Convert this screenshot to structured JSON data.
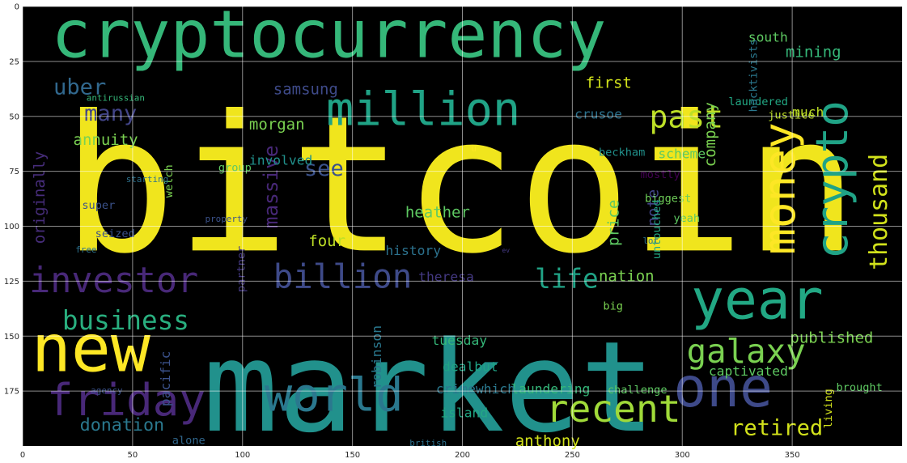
{
  "chart_data": {
    "type": "wordcloud",
    "title": "",
    "xlabel": "",
    "ylabel": "",
    "x_ticks": [
      0,
      50,
      100,
      150,
      200,
      250,
      300,
      350
    ],
    "y_ticks": [
      0,
      25,
      50,
      75,
      100,
      125,
      150,
      175
    ],
    "xlim": [
      0,
      400
    ],
    "ylim": [
      200,
      0
    ],
    "grid": true,
    "background": "#000000",
    "colors": {
      "yellow": "#f0e51d",
      "lime": "#8bd14f",
      "green": "#36b876",
      "teal": "#20928c",
      "cyan": "#21818d",
      "blue": "#335f8d",
      "indigo": "#3f4788",
      "purple": "#472f7d"
    },
    "words": [
      {
        "text": "bitcoin",
        "x": 18,
        "y": 111,
        "size": 86,
        "color": "#f0e51d"
      },
      {
        "text": "market",
        "x": 82,
        "y": 193,
        "size": 57,
        "color": "#21918c"
      },
      {
        "text": "cryptocurrency",
        "x": 13,
        "y": 23,
        "size": 30,
        "color": "#35b779"
      },
      {
        "text": "million",
        "x": 138,
        "y": 54,
        "size": 21,
        "color": "#20a386"
      },
      {
        "text": "new",
        "x": 4,
        "y": 166,
        "size": 30,
        "color": "#fde725"
      },
      {
        "text": "friday",
        "x": 11,
        "y": 186,
        "size": 20,
        "color": "#482878"
      },
      {
        "text": "world",
        "x": 110,
        "y": 184,
        "size": 21,
        "color": "#2a788e"
      },
      {
        "text": "investor",
        "x": 3,
        "y": 130,
        "size": 16,
        "color": "#482878"
      },
      {
        "text": "billion",
        "x": 114,
        "y": 128,
        "size": 15,
        "color": "#3e4a89"
      },
      {
        "text": "one",
        "x": 296,
        "y": 182,
        "size": 25,
        "color": "#3e4a89"
      },
      {
        "text": "year",
        "x": 304,
        "y": 142,
        "size": 25,
        "color": "#22a884"
      },
      {
        "text": "galaxy",
        "x": 302,
        "y": 162,
        "size": 15,
        "color": "#7ad151"
      },
      {
        "text": "recent",
        "x": 238,
        "y": 189,
        "size": 17,
        "color": "#a0da39"
      },
      {
        "text": "past",
        "x": 285,
        "y": 55,
        "size": 14,
        "color": "#bddf26"
      },
      {
        "text": "life",
        "x": 233,
        "y": 128,
        "size": 12,
        "color": "#20a386"
      },
      {
        "text": "business",
        "x": 18,
        "y": 147,
        "size": 12,
        "color": "#29af7f"
      },
      {
        "text": "many",
        "x": 28,
        "y": 52,
        "size": 10,
        "color": "#414487"
      },
      {
        "text": "uber",
        "x": 14,
        "y": 40,
        "size": 10,
        "color": "#31688e"
      },
      {
        "text": "massive",
        "x": 116,
        "y": 101,
        "size": 9,
        "color": "#482878",
        "rotate": -90
      },
      {
        "text": "samsung",
        "x": 114,
        "y": 40,
        "size": 7,
        "color": "#3e4a89"
      },
      {
        "text": "morgan",
        "x": 103,
        "y": 56,
        "size": 7,
        "color": "#7ad151"
      },
      {
        "text": "first",
        "x": 256,
        "y": 37,
        "size": 7,
        "color": "#d2e21b"
      },
      {
        "text": "retired",
        "x": 322,
        "y": 195,
        "size": 10,
        "color": "#d2e21b"
      },
      {
        "text": "donation",
        "x": 26,
        "y": 193,
        "size": 8,
        "color": "#2a788e"
      },
      {
        "text": "money",
        "x": 351,
        "y": 113,
        "size": 20,
        "color": "#fde725",
        "rotate": -90
      },
      {
        "text": "crypto",
        "x": 375,
        "y": 115,
        "size": 20,
        "color": "#20a386",
        "rotate": -90
      },
      {
        "text": "thousand",
        "x": 393,
        "y": 120,
        "size": 11,
        "color": "#d2e21b",
        "rotate": -90
      },
      {
        "text": "company",
        "x": 315,
        "y": 73,
        "size": 7,
        "color": "#7ad151",
        "rotate": -90
      },
      {
        "text": "mining",
        "x": 347,
        "y": 23,
        "size": 7,
        "color": "#35b779"
      },
      {
        "text": "south",
        "x": 330,
        "y": 16,
        "size": 6,
        "color": "#5ec962"
      },
      {
        "text": "crusoe",
        "x": 251,
        "y": 51,
        "size": 6,
        "color": "#2c728e"
      },
      {
        "text": "much",
        "x": 350,
        "y": 50,
        "size": 6,
        "color": "#bddf26"
      },
      {
        "text": "see",
        "x": 128,
        "y": 77,
        "size": 10,
        "color": "#3b528b"
      },
      {
        "text": "heather",
        "x": 174,
        "y": 96,
        "size": 7,
        "color": "#5ec962"
      },
      {
        "text": "four",
        "x": 130,
        "y": 109,
        "size": 7,
        "color": "#bddf26"
      },
      {
        "text": "history",
        "x": 165,
        "y": 113,
        "size": 6,
        "color": "#2c728e"
      },
      {
        "text": "nation",
        "x": 262,
        "y": 125,
        "size": 7,
        "color": "#7ad151"
      },
      {
        "text": "published",
        "x": 349,
        "y": 153,
        "size": 7,
        "color": "#7ad151"
      },
      {
        "text": "price",
        "x": 271,
        "y": 109,
        "size": 7,
        "color": "#5ec962",
        "rotate": -90
      },
      {
        "text": "note",
        "x": 289,
        "y": 100,
        "size": 7,
        "color": "#414487",
        "rotate": -90
      },
      {
        "text": "annuity",
        "x": 23,
        "y": 63,
        "size": 7,
        "color": "#7ad151"
      },
      {
        "text": "originally",
        "x": 10,
        "y": 108,
        "size": 7,
        "color": "#472d7b",
        "rotate": -90
      },
      {
        "text": "involved",
        "x": 103,
        "y": 72,
        "size": 6,
        "color": "#21918c"
      },
      {
        "text": "robinson",
        "x": 163,
        "y": 174,
        "size": 6,
        "color": "#2a788e",
        "rotate": -90
      },
      {
        "text": "theresa",
        "x": 180,
        "y": 125,
        "size": 6,
        "color": "#443983"
      },
      {
        "text": "anthony",
        "x": 224,
        "y": 200,
        "size": 7,
        "color": "#d2e21b"
      },
      {
        "text": "captivated",
        "x": 312,
        "y": 168,
        "size": 6,
        "color": "#5ec962"
      },
      {
        "text": "laundering",
        "x": 222,
        "y": 176,
        "size": 6,
        "color": "#35b779"
      },
      {
        "text": "crimewhich",
        "x": 188,
        "y": 176,
        "size": 6,
        "color": "#2a788e"
      },
      {
        "text": "island",
        "x": 190,
        "y": 187,
        "size": 6,
        "color": "#22a884"
      },
      {
        "text": "dealbut",
        "x": 191,
        "y": 166,
        "size": 6,
        "color": "#20a386"
      },
      {
        "text": "tuesday",
        "x": 186,
        "y": 154,
        "size": 6,
        "color": "#35b779"
      },
      {
        "text": "pacific",
        "x": 67,
        "y": 182,
        "size": 6,
        "color": "#3b528b",
        "rotate": -90
      },
      {
        "text": "scheme",
        "x": 289,
        "y": 69,
        "size": 6,
        "color": "#5ec962"
      },
      {
        "text": "biggest",
        "x": 283,
        "y": 89,
        "size": 5,
        "color": "#6ece58"
      },
      {
        "text": "beckham",
        "x": 262,
        "y": 68,
        "size": 5,
        "color": "#21918c"
      },
      {
        "text": "laundered",
        "x": 321,
        "y": 45,
        "size": 5,
        "color": "#22a884"
      },
      {
        "text": "justice",
        "x": 339,
        "y": 51,
        "size": 5,
        "color": "#bddf26"
      },
      {
        "text": "hacktivists",
        "x": 334,
        "y": 48,
        "size": 5,
        "color": "#2a788e",
        "rotate": -90
      },
      {
        "text": "mostly",
        "x": 281,
        "y": 78,
        "size": 5,
        "color": "#440154"
      },
      {
        "text": "yeah",
        "x": 296,
        "y": 98,
        "size": 5,
        "color": "#5ec962"
      },
      {
        "text": "untouched",
        "x": 290,
        "y": 115,
        "size": 5,
        "color": "#22a884",
        "rotate": -90
      },
      {
        "text": "partner",
        "x": 101,
        "y": 130,
        "size": 5,
        "color": "#443983",
        "rotate": -90
      },
      {
        "text": "welch",
        "x": 68,
        "y": 87,
        "size": 5,
        "color": "#7ad151",
        "rotate": -90
      },
      {
        "text": "group",
        "x": 89,
        "y": 75,
        "size": 5,
        "color": "#5ec962"
      },
      {
        "text": "super",
        "x": 27,
        "y": 92,
        "size": 5,
        "color": "#3b528b"
      },
      {
        "text": "seized",
        "x": 33,
        "y": 105,
        "size": 5,
        "color": "#3b528b"
      },
      {
        "text": "brought",
        "x": 370,
        "y": 175,
        "size": 5,
        "color": "#5ec962"
      },
      {
        "text": "living",
        "x": 368,
        "y": 192,
        "size": 5,
        "color": "#d2e21b",
        "rotate": -90
      },
      {
        "text": "big",
        "x": 264,
        "y": 138,
        "size": 5,
        "color": "#7ad151"
      },
      {
        "text": "alone",
        "x": 68,
        "y": 199,
        "size": 5,
        "color": "#31688e"
      },
      {
        "text": "challenge",
        "x": 266,
        "y": 176,
        "size": 5,
        "color": "#5ec962"
      },
      {
        "text": "antirussian",
        "x": 29,
        "y": 43,
        "size": 4,
        "color": "#35b779"
      },
      {
        "text": "property",
        "x": 83,
        "y": 98,
        "size": 4,
        "color": "#3b528b"
      },
      {
        "text": "agency",
        "x": 31,
        "y": 176,
        "size": 4,
        "color": "#3b528b"
      },
      {
        "text": "free",
        "x": 24,
        "y": 112,
        "size": 4,
        "color": "#2c728e"
      },
      {
        "text": "starting",
        "x": 47,
        "y": 80,
        "size": 4,
        "color": "#2c728e"
      },
      {
        "text": "british",
        "x": 176,
        "y": 200,
        "size": 4,
        "color": "#2c728e"
      },
      {
        "text": "u",
        "x": 204,
        "y": 66,
        "size": 4,
        "color": "#fde725"
      },
      {
        "text": "ev",
        "x": 218,
        "y": 112,
        "size": 3,
        "color": "#443983"
      },
      {
        "text": "lot",
        "x": 282,
        "y": 108,
        "size": 4,
        "color": "#2c728e"
      }
    ]
  }
}
